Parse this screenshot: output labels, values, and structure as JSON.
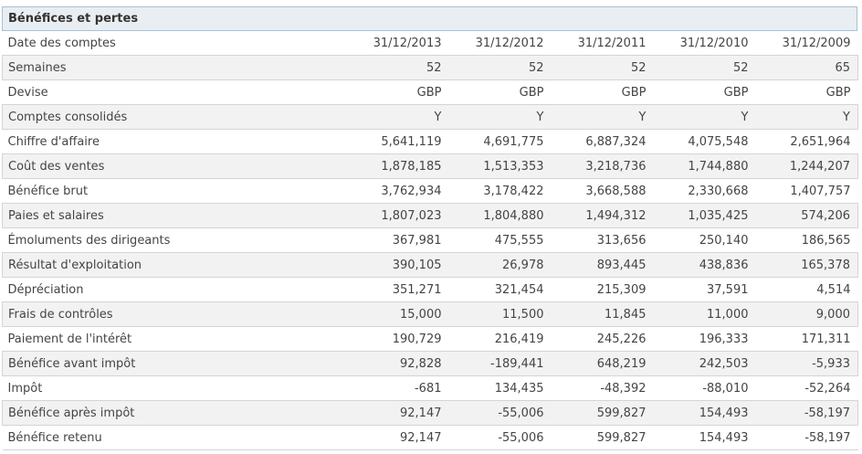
{
  "section_title": "Bénéfices et pertes",
  "rows": [
    {
      "label": "Date des comptes",
      "values": [
        "31/12/2013",
        "31/12/2012",
        "31/12/2011",
        "31/12/2010",
        "31/12/2009"
      ]
    },
    {
      "label": "Semaines",
      "values": [
        "52",
        "52",
        "52",
        "52",
        "65"
      ]
    },
    {
      "label": "Devise",
      "values": [
        "GBP",
        "GBP",
        "GBP",
        "GBP",
        "GBP"
      ]
    },
    {
      "label": "Comptes consolidés",
      "values": [
        "Y",
        "Y",
        "Y",
        "Y",
        "Y"
      ]
    },
    {
      "label": "Chiffre d'affaire",
      "values": [
        "5,641,119",
        "4,691,775",
        "6,887,324",
        "4,075,548",
        "2,651,964"
      ]
    },
    {
      "label": "Coût des ventes",
      "values": [
        "1,878,185",
        "1,513,353",
        "3,218,736",
        "1,744,880",
        "1,244,207"
      ]
    },
    {
      "label": "Bénéfice brut",
      "values": [
        "3,762,934",
        "3,178,422",
        "3,668,588",
        "2,330,668",
        "1,407,757"
      ]
    },
    {
      "label": "Paies et salaires",
      "values": [
        "1,807,023",
        "1,804,880",
        "1,494,312",
        "1,035,425",
        "574,206"
      ]
    },
    {
      "label": "Émoluments des dirigeants",
      "values": [
        "367,981",
        "475,555",
        "313,656",
        "250,140",
        "186,565"
      ]
    },
    {
      "label": "Résultat d'exploitation",
      "values": [
        "390,105",
        "26,978",
        "893,445",
        "438,836",
        "165,378"
      ]
    },
    {
      "label": "Dépréciation",
      "values": [
        "351,271",
        "321,454",
        "215,309",
        "37,591",
        "4,514"
      ]
    },
    {
      "label": "Frais de contrôles",
      "values": [
        "15,000",
        "11,500",
        "11,845",
        "11,000",
        "9,000"
      ]
    },
    {
      "label": "Paiement de l'intérêt",
      "values": [
        "190,729",
        "216,419",
        "245,226",
        "196,333",
        "171,311"
      ]
    },
    {
      "label": "Bénéfice avant impôt",
      "values": [
        "92,828",
        "-189,441",
        "648,219",
        "242,503",
        "-5,933"
      ]
    },
    {
      "label": "Impôt",
      "values": [
        "-681",
        "134,435",
        "-48,392",
        "-88,010",
        "-52,264"
      ]
    },
    {
      "label": "Bénéfice après impôt",
      "values": [
        "92,147",
        "-55,006",
        "599,827",
        "154,493",
        "-58,197"
      ]
    },
    {
      "label": "Bénéfice retenu",
      "values": [
        "92,147",
        "-55,006",
        "599,827",
        "154,493",
        "-58,197"
      ]
    }
  ]
}
